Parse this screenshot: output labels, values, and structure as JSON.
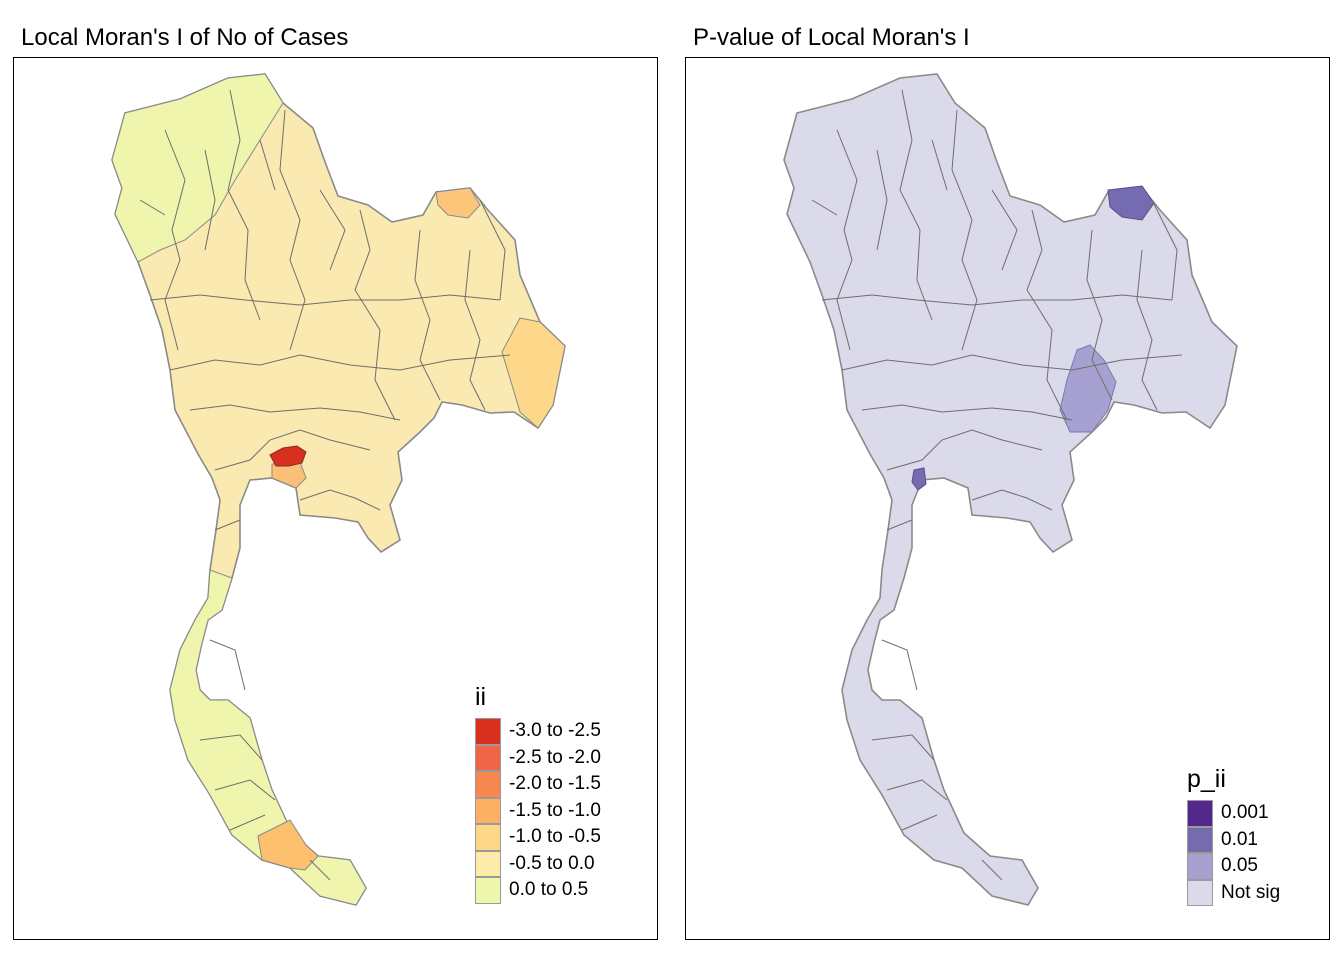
{
  "panels": [
    {
      "title": "Local Moran's I of No of Cases",
      "legend": {
        "title": "ii",
        "items": [
          {
            "label": "-3.0 to -2.5",
            "color": "#d7301f"
          },
          {
            "label": "-2.5 to -2.0",
            "color": "#ef6548"
          },
          {
            "label": "-2.0 to -1.5",
            "color": "#f7874f"
          },
          {
            "label": "-1.5 to -1.0",
            "color": "#fcb064"
          },
          {
            "label": "-1.0 to -0.5",
            "color": "#fdd88a"
          },
          {
            "label": "-0.5 to 0.0",
            "color": "#fdebaa"
          },
          {
            "label": "0.0 to 0.5",
            "color": "#edf6ab"
          }
        ]
      },
      "region_colors": {
        "base": "#fae9b0",
        "south": "#f0f5ad",
        "northeast_border": "#fdd88a",
        "far_northeast": "#fcc67a",
        "central_cluster": "#d7301f",
        "gulf_coast": "#fbc078",
        "southern_coast": "#fcc06f"
      }
    },
    {
      "title": "P-value of Local Moran's I",
      "legend": {
        "title": "p_ii",
        "items": [
          {
            "label": "0.001",
            "color": "#54278f"
          },
          {
            "label": "0.01",
            "color": "#756bb1"
          },
          {
            "label": "0.05",
            "color": "#a6a1d0"
          },
          {
            "label": "Not sig",
            "color": "#dadaea"
          }
        ]
      },
      "region_colors": {
        "base": "#dadaea",
        "far_northeast": "#756bb1",
        "east_central": "#a6a1d0",
        "gulf_west": "#756bb1"
      }
    }
  ]
}
